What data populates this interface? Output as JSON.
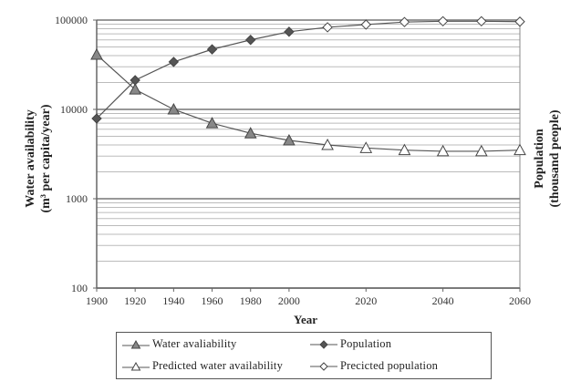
{
  "chart_data": {
    "type": "line",
    "title": "",
    "xlabel": "Year",
    "ylabel_left": [
      "Water availability",
      "(m³ per capita/year)"
    ],
    "ylabel_right": [
      "Population",
      "(thousand people)"
    ],
    "y_scale": "log",
    "ylim": [
      100,
      100000
    ],
    "y_ticks": [
      "100000",
      "10000",
      "1000",
      "100"
    ],
    "x_ticks": [
      "1900",
      "1920",
      "1940",
      "1960",
      "1980",
      "2000",
      "2020",
      "2040",
      "2060"
    ],
    "x": [
      "1900",
      "1920",
      "1940",
      "1960",
      "1980",
      "2000",
      "2010",
      "2020",
      "2030",
      "2040",
      "2050",
      "2060"
    ],
    "grid": true,
    "legend_position": "bottom",
    "series": [
      {
        "name": "Water avaliability",
        "marker": "triangle-filled",
        "x": [
          "1900",
          "1920",
          "1940",
          "1960",
          "1980",
          "2000"
        ],
        "values": [
          41000,
          16700,
          10000,
          7000,
          5400,
          4500
        ]
      },
      {
        "name": "Population",
        "marker": "diamond-filled",
        "x": [
          "1900",
          "1920",
          "1940",
          "1960",
          "1980",
          "2000"
        ],
        "values": [
          7900,
          21200,
          34000,
          47000,
          60000,
          74000
        ]
      },
      {
        "name": "Predicted water availability",
        "marker": "triangle-open",
        "x": [
          "2000",
          "2010",
          "2020",
          "2030",
          "2040",
          "2050",
          "2060"
        ],
        "values": [
          4500,
          4000,
          3700,
          3500,
          3400,
          3400,
          3500
        ]
      },
      {
        "name": "Precicted population",
        "marker": "diamond-open",
        "x": [
          "2000",
          "2010",
          "2020",
          "2030",
          "2040",
          "2050",
          "2060"
        ],
        "values": [
          74000,
          83000,
          89000,
          95000,
          97000,
          97000,
          96000
        ]
      }
    ]
  },
  "labels": {
    "ylabel_left_line1": "Water availability",
    "ylabel_left_line2": "(m³ per capita/year)",
    "ylabel_right_line1": "Population",
    "ylabel_right_line2": "(thousand people)",
    "xlabel": "Year"
  },
  "legend": {
    "items": [
      {
        "label": "Water avaliability"
      },
      {
        "label": "Population"
      },
      {
        "label": "Predicted water availability"
      },
      {
        "label": "Precicted population"
      }
    ]
  },
  "colors": {
    "line": "#555555",
    "marker_fill_water": "#888888",
    "marker_fill_pop": "#555555",
    "marker_open": "#ffffff",
    "grid_major": "#777777",
    "grid_minor": "#bbbbbb"
  }
}
